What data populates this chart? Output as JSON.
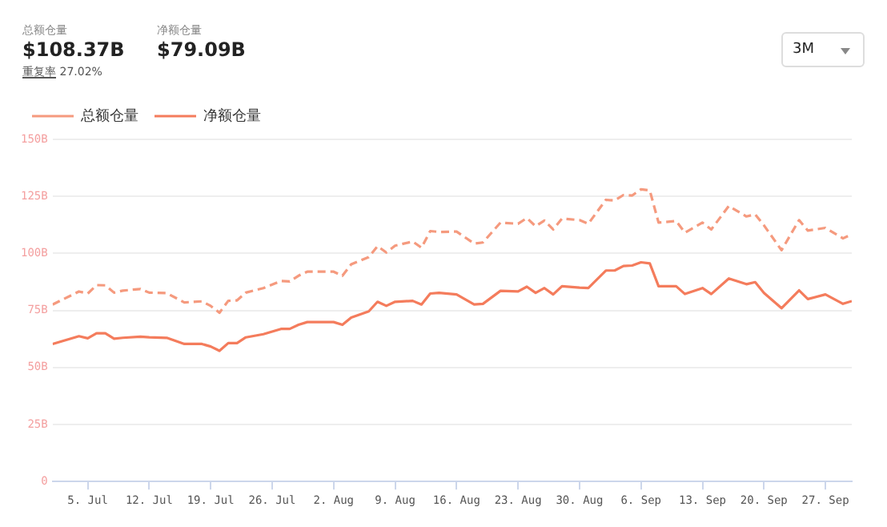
{
  "chart_data": {
    "type": "line",
    "annotations": [
      "总额仓量",
      "$108.37B",
      "净额仓量",
      "$79.09B",
      "重复率",
      "27.02%",
      "3M"
    ],
    "x": [
      "--07-01",
      "--07-04",
      "--07-05",
      "--07-06",
      "--07-07",
      "--07-08",
      "--07-09",
      "--07-11",
      "--07-12",
      "--07-14",
      "--07-16",
      "--07-18",
      "--07-19",
      "--07-20",
      "--07-21",
      "--07-22",
      "--07-23",
      "--07-25",
      "--07-27",
      "--07-28",
      "--07-29",
      "--07-30",
      "--08-02",
      "--08-03",
      "--08-04",
      "--08-06",
      "--08-07",
      "--08-08",
      "--08-09",
      "--08-11",
      "--08-12",
      "--08-13",
      "--08-14",
      "--08-16",
      "--08-18",
      "--08-19",
      "--08-21",
      "--08-23",
      "--08-24",
      "--08-25",
      "--08-26",
      "--08-27",
      "--08-28",
      "--08-30",
      "--08-31",
      "--09-02",
      "--09-03",
      "--09-04",
      "--09-05",
      "--09-06",
      "--09-07",
      "--09-08",
      "--09-10",
      "--09-11",
      "--09-13",
      "--09-14",
      "--09-16",
      "--09-18",
      "--09-19",
      "--09-20",
      "--09-22",
      "--09-24",
      "--09-25",
      "--09-27",
      "--09-29",
      "--09-30"
    ],
    "series": [
      {
        "name": "总额仓量",
        "color": "#f59a7e",
        "line_style": "dashed",
        "values": [
          77.6,
          83.3,
          82.4,
          86.1,
          86,
          82.8,
          83.7,
          84.4,
          82.8,
          82.6,
          78.5,
          79,
          77,
          74,
          79.2,
          79.4,
          82.8,
          84.8,
          87.9,
          87.7,
          90.2,
          92,
          92,
          90.2,
          95.2,
          98.4,
          103.2,
          100.4,
          103.4,
          105.2,
          102.5,
          109.8,
          109.4,
          109.6,
          104.3,
          104.8,
          113.5,
          113,
          115.5,
          111.9,
          114.4,
          110.5,
          115.3,
          114.6,
          113,
          123.5,
          123.2,
          125.6,
          125.4,
          128.1,
          127.6,
          113.5,
          114.2,
          109.1,
          113.5,
          110.5,
          120.8,
          116.2,
          117.1,
          112.3,
          101.4,
          114.6,
          110,
          111.2,
          106.6,
          108.4
        ]
      },
      {
        "name": "净额仓量",
        "color": "#f47c5c",
        "line_style": "solid",
        "values": [
          60.3,
          63.7,
          62.8,
          65,
          65,
          62.6,
          63,
          63.5,
          63.2,
          63,
          60.3,
          60.3,
          59.2,
          57.3,
          60.7,
          60.7,
          63.2,
          64.6,
          66.9,
          66.9,
          68.7,
          69.9,
          69.9,
          68.7,
          71.9,
          74.6,
          78.8,
          77,
          78.8,
          79.2,
          77.6,
          82.4,
          82.7,
          82,
          77.6,
          77.9,
          83.6,
          83.3,
          85.4,
          82.7,
          84.8,
          82,
          85.6,
          85,
          84.8,
          92.5,
          92.5,
          94.5,
          94.7,
          96.1,
          95.6,
          85.6,
          85.6,
          82.2,
          84.8,
          82.2,
          89,
          86.5,
          87.4,
          82.7,
          76,
          83.8,
          80,
          82,
          77.9,
          79.1
        ]
      }
    ],
    "xlim": [
      "--07-01",
      "--09-30"
    ],
    "xticks": [
      {
        "value": "--07-05",
        "label": "5. Jul"
      },
      {
        "value": "--07-12",
        "label": "12. Jul"
      },
      {
        "value": "--07-19",
        "label": "19. Jul"
      },
      {
        "value": "--07-26",
        "label": "26. Jul"
      },
      {
        "value": "--08-02",
        "label": "2. Aug"
      },
      {
        "value": "--08-09",
        "label": "9. Aug"
      },
      {
        "value": "--08-16",
        "label": "16. Aug"
      },
      {
        "value": "--08-23",
        "label": "23. Aug"
      },
      {
        "value": "--08-30",
        "label": "30. Aug"
      },
      {
        "value": "--09-06",
        "label": "6. Sep"
      },
      {
        "value": "--09-13",
        "label": "13. Sep"
      },
      {
        "value": "--09-20",
        "label": "20. Sep"
      },
      {
        "value": "--09-27",
        "label": "27. Sep"
      }
    ],
    "ylim": [
      0,
      150
    ],
    "yticks": [
      0,
      {
        "value": 25,
        "label": "25B"
      },
      {
        "value": 50,
        "label": "50B"
      },
      {
        "value": 75,
        "label": "75B"
      },
      {
        "value": 100,
        "label": "100B"
      },
      {
        "value": 125,
        "label": "125B"
      },
      {
        "value": 150,
        "label": "150B"
      }
    ],
    "grid": "y",
    "legend": "top left",
    "marker": "none"
  }
}
